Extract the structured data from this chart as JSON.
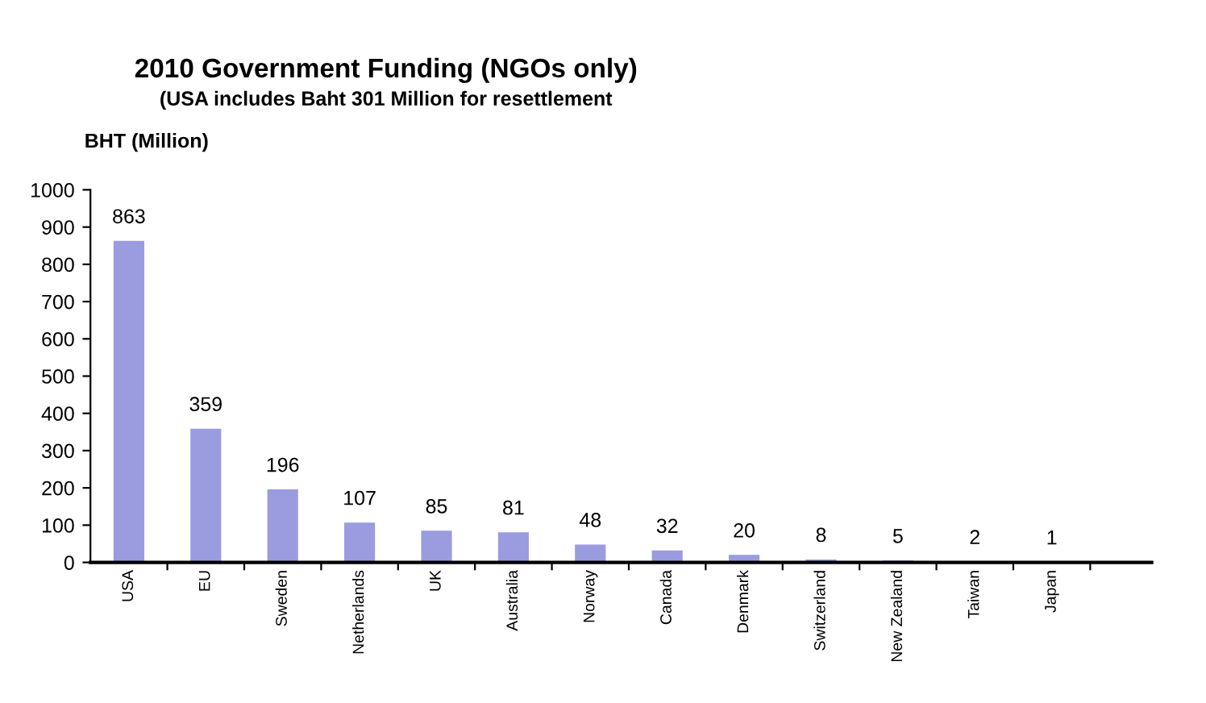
{
  "chart_data": {
    "type": "bar",
    "title": "2010 Government Funding (NGOs only)",
    "subtitle": "(USA includes Baht 301 Million for resettlement",
    "ylabel": "BHT (Million)",
    "categories": [
      "USA",
      "EU",
      "Sweden",
      "Netherlands",
      "UK",
      "Australia",
      "Norway",
      "Canada",
      "Denmark",
      "Switzerland",
      "New Zealand",
      "Taiwan",
      "Japan"
    ],
    "values": [
      863,
      359,
      196,
      107,
      85,
      81,
      48,
      32,
      20,
      8,
      5,
      2,
      1
    ],
    "color": "#9b9be0",
    "ylim": [
      0,
      1000
    ],
    "yticks": [
      0,
      100,
      200,
      300,
      400,
      500,
      600,
      700,
      800,
      900,
      1000
    ],
    "data_labels": true,
    "grid": false,
    "legend": false
  }
}
